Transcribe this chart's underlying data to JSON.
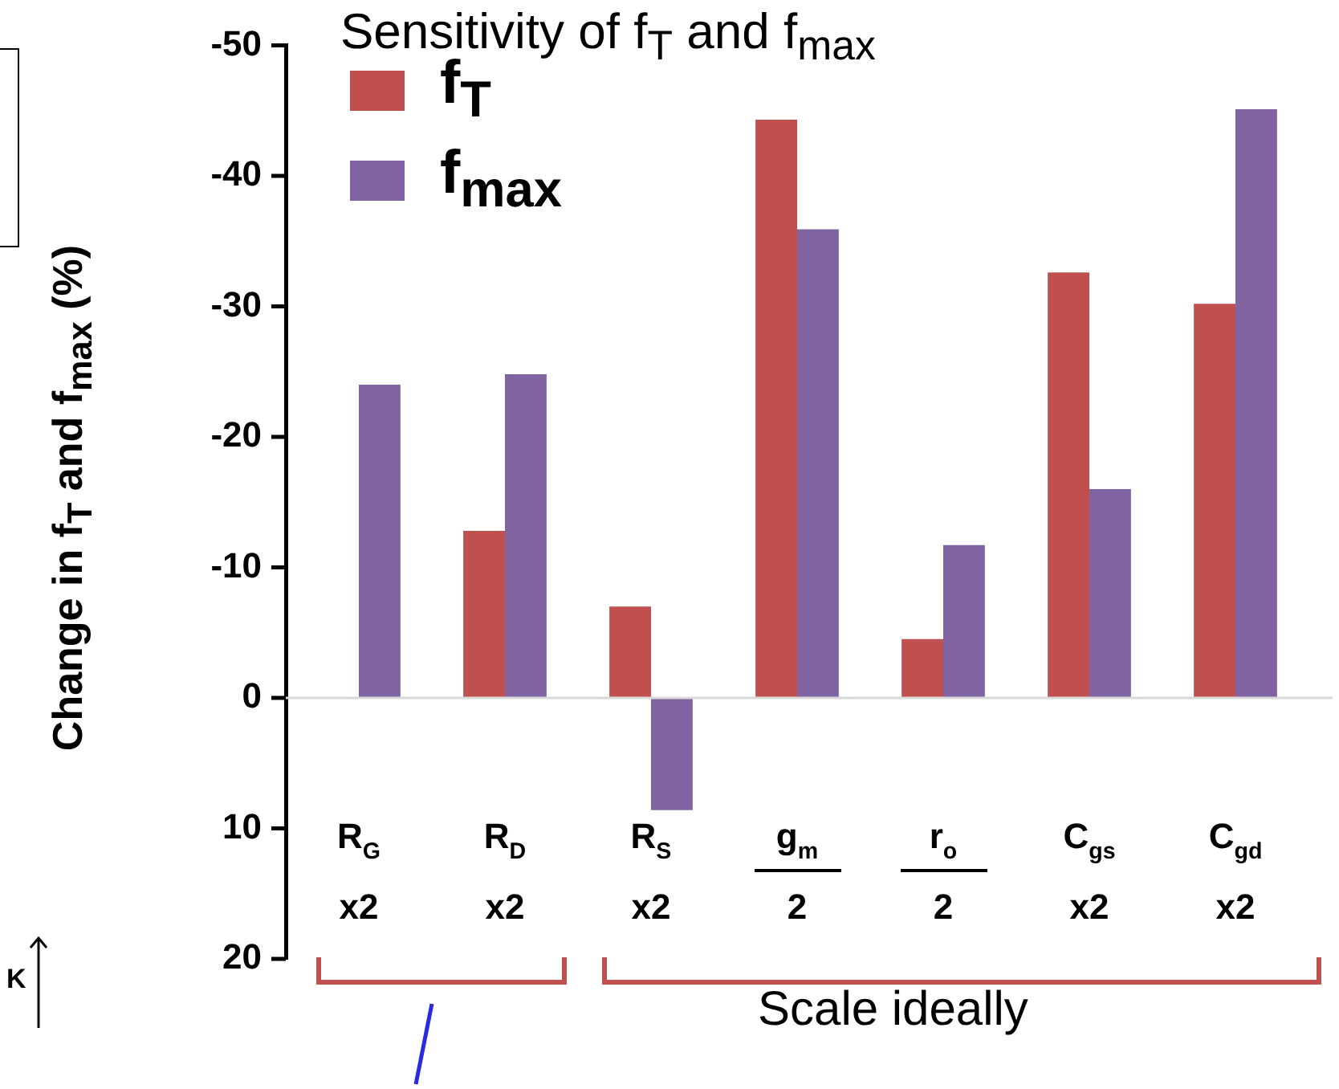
{
  "chart_data": {
    "type": "bar",
    "title": "Sensitivity of f$_{T}$ and f$_{max}$",
    "ylabel": "Change in f$_{T}$ and f$_{max}$ (%)",
    "categories": [
      "R$_{G}$ x2",
      "R$_{D}$ x2",
      "R$_{S}$ x2",
      "g$_{m}$ 2",
      "r$_{o}$ 2",
      "C$_{gs}$ x2",
      "C$_{gd}$ x2"
    ],
    "series": [
      {
        "name": "f$_{T}$",
        "color": "#c0504d",
        "values": [
          0,
          -12.8,
          -7,
          -44.3,
          -4.5,
          -32.6,
          -30.2
        ]
      },
      {
        "name": "f$_{max}$",
        "color": "#8064a2",
        "values": [
          -24,
          -24.8,
          8.6,
          -35.9,
          -11.7,
          -16,
          -45.1
        ]
      }
    ],
    "ylim": [
      20,
      -50
    ],
    "yticks": [
      -50,
      -40,
      -30,
      -20,
      -10,
      0,
      10,
      20
    ],
    "grid": false,
    "ref_lines": [
      {
        "axis": "y",
        "value": 0,
        "color": "#d9d9d9"
      }
    ],
    "legend": "top left",
    "annotations": [
      "Scale ideally",
      "K"
    ]
  }
}
